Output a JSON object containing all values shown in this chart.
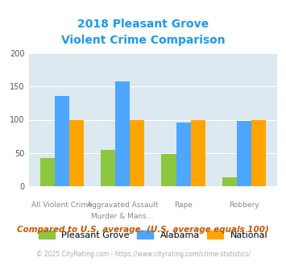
{
  "title_line1": "2018 Pleasant Grove",
  "title_line2": "Violent Crime Comparison",
  "title_color": "#1a9af0",
  "cat_labels_top": [
    "",
    "Aggravated Assault",
    "",
    ""
  ],
  "cat_labels_bot": [
    "All Violent Crime",
    "Murder & Mans...",
    "Rape",
    "Robbery"
  ],
  "pleasant_grove": [
    43,
    55,
    48,
    13
  ],
  "alabama": [
    136,
    158,
    96,
    98
  ],
  "national": [
    100,
    100,
    100,
    100
  ],
  "pleasant_grove_color": "#8dc63f",
  "alabama_color": "#4da6ff",
  "national_color": "#ffa500",
  "ylim": [
    0,
    200
  ],
  "yticks": [
    0,
    50,
    100,
    150,
    200
  ],
  "plot_bg": "#dce9f0",
  "footer_text": "Compared to U.S. average. (U.S. average equals 100)",
  "footer_color": "#cc5500",
  "copyright_text": "© 2025 CityRating.com - https://www.cityrating.com/crime-statistics/",
  "copyright_color": "#aaaaaa",
  "legend_labels": [
    "Pleasant Grove",
    "Alabama",
    "National"
  ],
  "bar_width": 0.24
}
